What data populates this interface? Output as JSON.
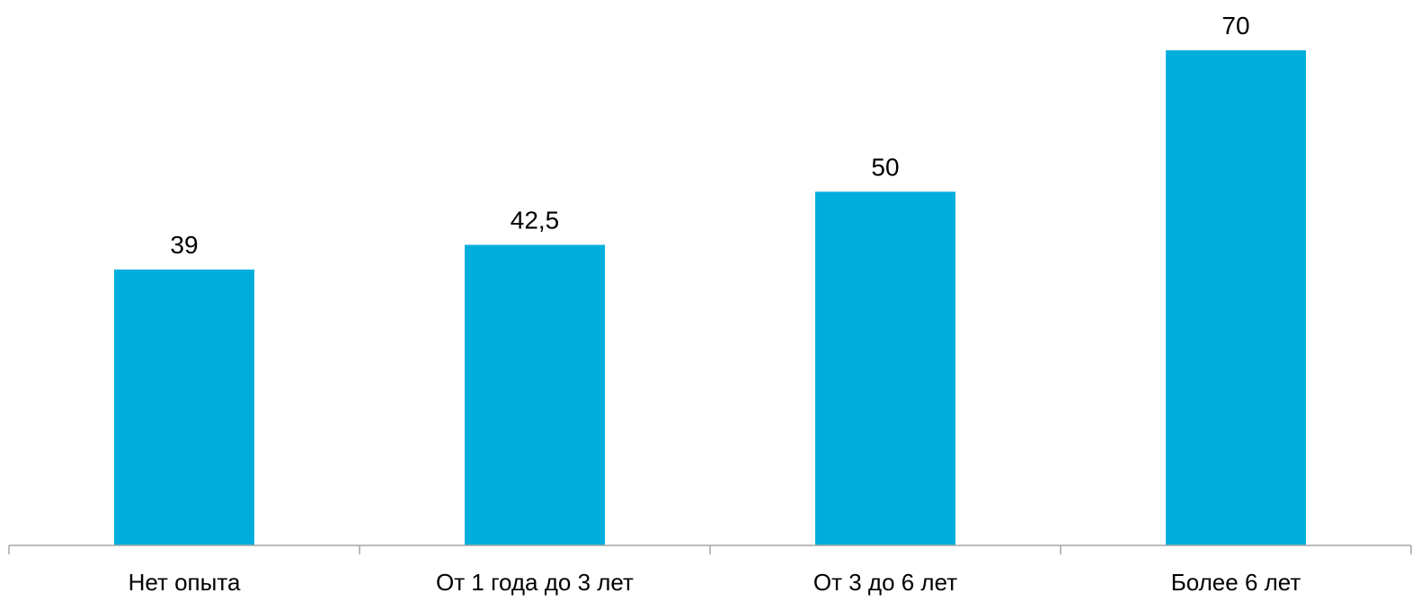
{
  "chart_data": {
    "type": "bar",
    "categories": [
      "Нет опыта",
      "От 1 года до 3 лет",
      "От 3 до 6 лет",
      "Более 6 лет"
    ],
    "values": [
      39,
      42.5,
      50,
      70
    ],
    "value_labels": [
      "39",
      "42,5",
      "50",
      "70"
    ],
    "title": "",
    "xlabel": "",
    "ylabel": "",
    "ylim": [
      0,
      70
    ],
    "grid": false,
    "legend": "none",
    "bar_color": "#00AEDE",
    "axis_color": "#A6A6A6"
  }
}
